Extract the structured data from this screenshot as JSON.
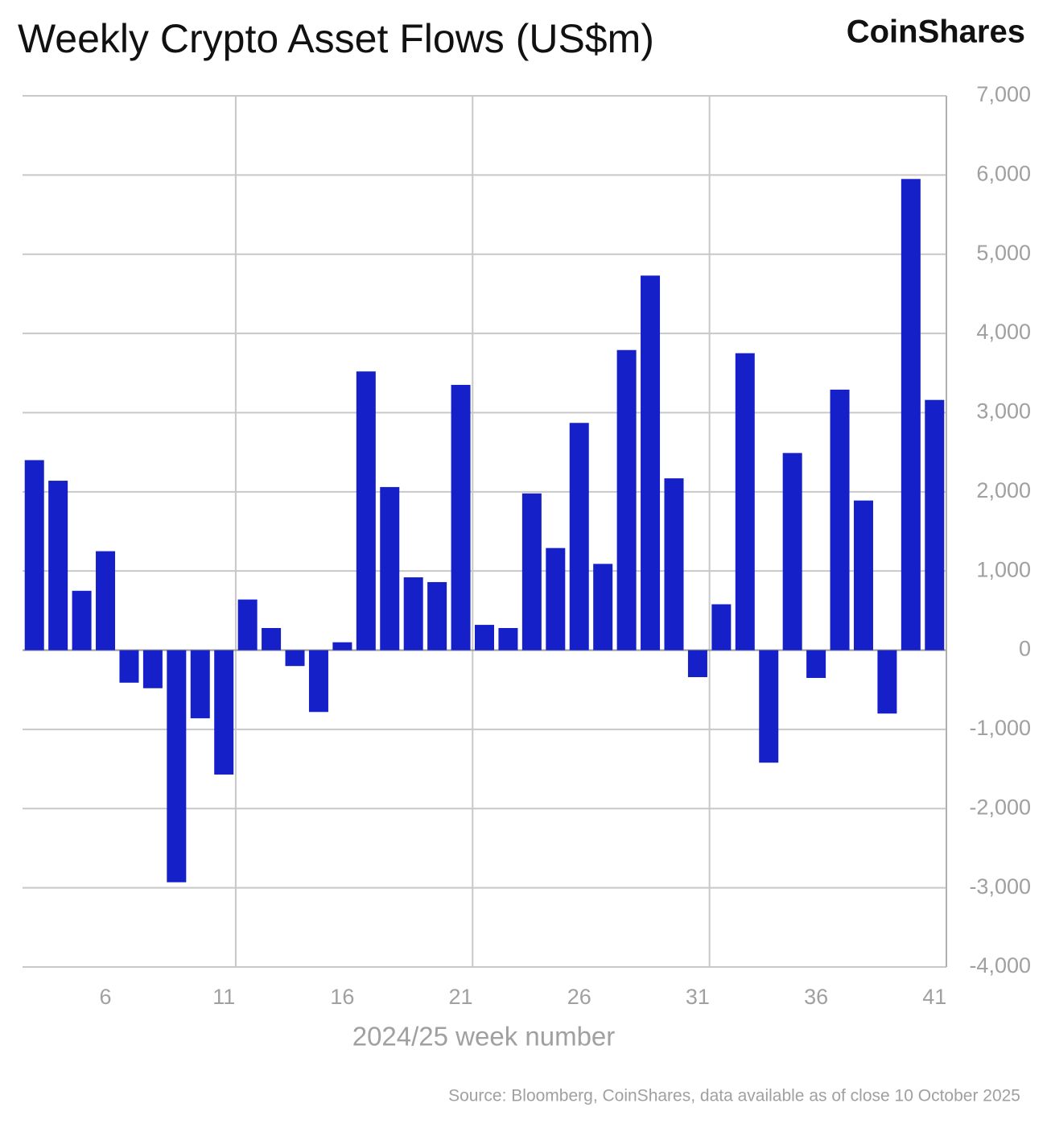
{
  "chart_data": {
    "type": "bar",
    "title": "Weekly Crypto Asset Flows (US$m)",
    "brand": "CoinShares",
    "x_label": "2024/25 week number",
    "source": "Source: Bloomberg, CoinShares, data available as of close 10 October 2025",
    "categories": [
      null,
      null,
      null,
      "6",
      null,
      null,
      null,
      null,
      "11",
      null,
      null,
      null,
      null,
      "16",
      null,
      null,
      null,
      null,
      "21",
      null,
      null,
      null,
      null,
      "26",
      null,
      null,
      null,
      null,
      "31",
      null,
      null,
      null,
      null,
      "36",
      null,
      null,
      null,
      null,
      "41"
    ],
    "values": [
      2400,
      2140,
      750,
      1250,
      -410,
      -480,
      -2930,
      -860,
      -1570,
      640,
      280,
      -200,
      -780,
      100,
      3520,
      2060,
      920,
      860,
      3350,
      320,
      280,
      1980,
      1290,
      2870,
      1090,
      3790,
      4730,
      2170,
      -340,
      580,
      3750,
      -1420,
      2490,
      -350,
      3290,
      1890,
      -800,
      5950,
      3160
    ],
    "color": "#1520c8",
    "ylim": [
      -4000,
      7000
    ],
    "yticks": [
      {
        "value": -4000,
        "label": "-4,000"
      },
      {
        "value": -3000,
        "label": "-3,000"
      },
      {
        "value": -2000,
        "label": "-2,000"
      },
      {
        "value": -1000,
        "label": "-1,000"
      },
      0,
      {
        "value": 1000,
        "label": "1,000"
      },
      {
        "value": 2000,
        "label": "2,000"
      },
      {
        "value": 3000,
        "label": "3,000"
      },
      {
        "value": 4000,
        "label": "4,000"
      },
      {
        "value": 5000,
        "label": "5,000"
      },
      {
        "value": 6000,
        "label": "6,000"
      },
      {
        "value": 7000,
        "label": "7,000"
      }
    ],
    "grid": true,
    "y_axis_side": "right"
  }
}
